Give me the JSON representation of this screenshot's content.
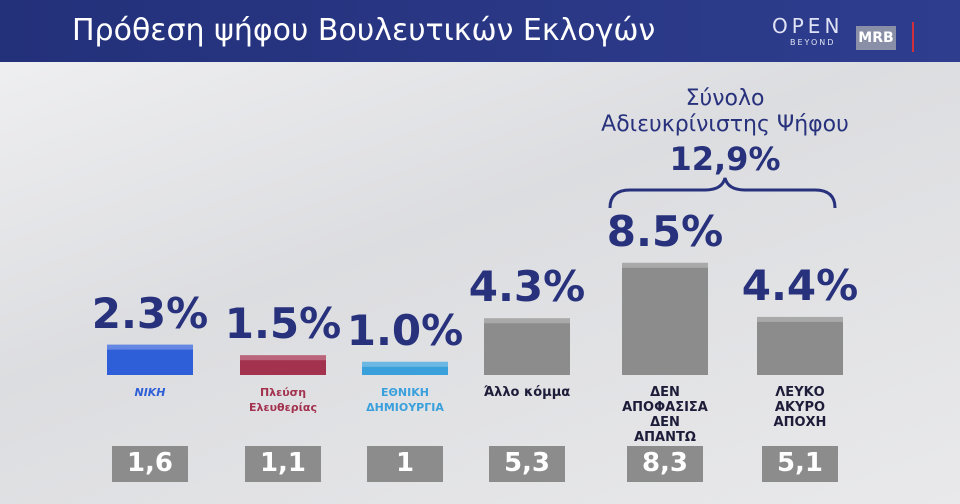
{
  "chart_data": {
    "type": "bar",
    "title": "Πρόθεση ψήφου Βουλευτικών Εκλογών",
    "brand": [
      "OPEN",
      "BEYOND",
      "MRB"
    ],
    "categories": [
      "ΝΙΚΗ",
      "Πλεύση Ελευθερίας",
      "ΕΘΝΙΚΗ ΔΗΜΙΟΥΡΓΙΑ",
      "Άλλο κόμμα",
      "ΔΕΝ ΑΠΟΦΑΣΙΣΑ ΔΕΝ ΑΠΑΝΤΩ",
      "ΛΕΥΚΟ ΑΚΥΡΟ ΑΠΟΧΗ"
    ],
    "series": [
      {
        "values": [
          2.3,
          1.5,
          1.0,
          4.3,
          8.5,
          4.4
        ],
        "value_labels": [
          "2.3%",
          "1.5%",
          "1.0%",
          "4.3%",
          "8.5%",
          "4.4%"
        ],
        "colors": [
          "#2f5fd8",
          "#a3324f",
          "#3aa0dc",
          "#8c8c8c",
          "#8c8c8c",
          "#8c8c8c"
        ]
      },
      {
        "values": [
          1.6,
          1.1,
          1,
          5.3,
          8.3,
          5.1
        ],
        "value_labels": [
          "1,6",
          "1,1",
          "1",
          "5,3",
          "8,3",
          "5,1"
        ],
        "color": "#8c8c8c"
      }
    ],
    "annotation": {
      "text": [
        "Σύνολο",
        "Αδιευκρίνιστης Ψήφου"
      ],
      "value": 12.9,
      "value_label": "12,9%"
    }
  }
}
